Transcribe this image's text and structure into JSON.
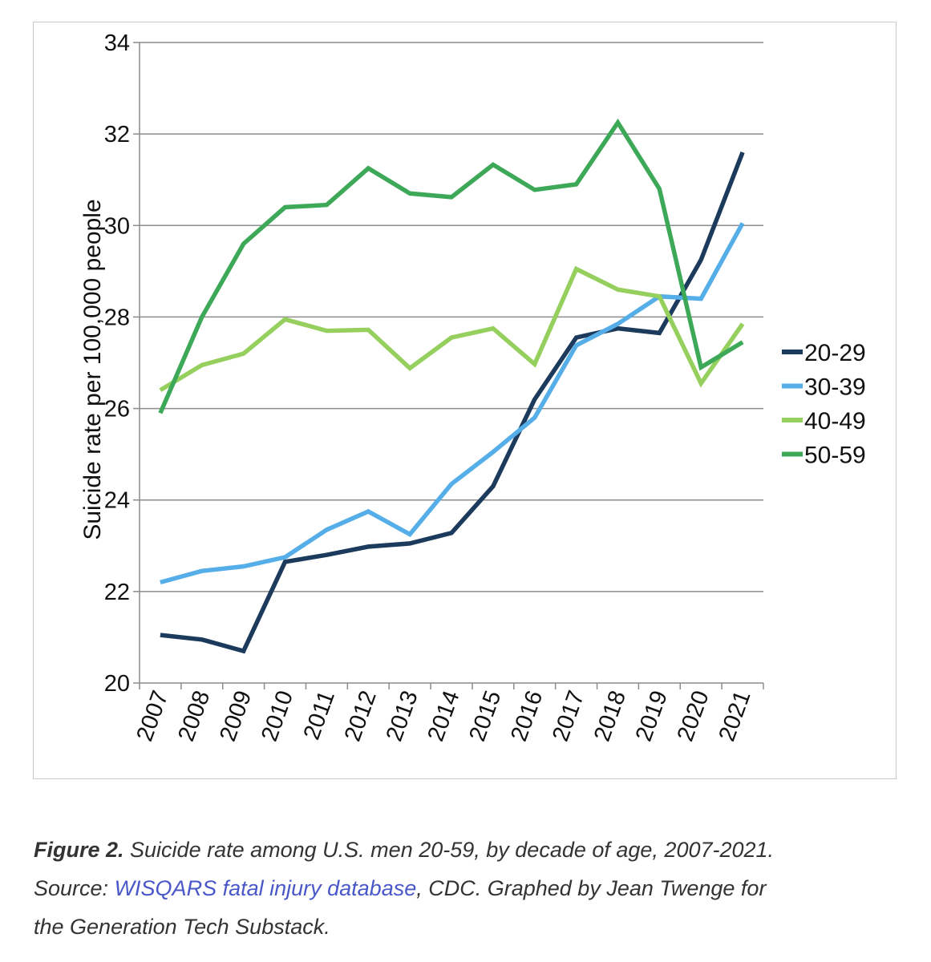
{
  "chart_data": {
    "type": "line",
    "title": "",
    "xlabel": "",
    "ylabel": "Suicide rate per 100,000 people",
    "ylim": [
      20,
      34
    ],
    "yticks": [
      "20",
      "22",
      "24",
      "26",
      "28",
      "30",
      "32",
      "34"
    ],
    "ytick_values": [
      20,
      22,
      24,
      26,
      28,
      30,
      32,
      34
    ],
    "categories": [
      "2007",
      "2008",
      "2009",
      "2010",
      "2011",
      "2012",
      "2013",
      "2014",
      "2015",
      "2016",
      "2017",
      "2018",
      "2019",
      "2020",
      "2021"
    ],
    "grid": true,
    "legend_position": "right",
    "series": [
      {
        "name": "20-29",
        "color": "#1c3a5c",
        "values": [
          21.05,
          20.95,
          20.7,
          22.65,
          22.8,
          22.98,
          23.05,
          23.28,
          24.3,
          26.2,
          27.55,
          27.75,
          27.65,
          29.25,
          31.6
        ]
      },
      {
        "name": "30-39",
        "color": "#55aee8",
        "values": [
          22.2,
          22.45,
          22.55,
          22.75,
          23.35,
          23.75,
          23.25,
          24.35,
          25.05,
          25.8,
          27.38,
          27.85,
          28.45,
          28.4,
          30.05
        ]
      },
      {
        "name": "40-49",
        "color": "#95cf5d",
        "values": [
          26.4,
          26.95,
          27.2,
          27.95,
          27.7,
          27.72,
          26.88,
          27.55,
          27.75,
          26.97,
          29.05,
          28.6,
          28.45,
          26.55,
          27.85
        ]
      },
      {
        "name": "50-59",
        "color": "#3da958",
        "values": [
          25.9,
          28.0,
          29.6,
          30.4,
          30.45,
          31.25,
          30.7,
          30.62,
          31.33,
          30.78,
          30.9,
          32.25,
          30.8,
          26.9,
          27.45
        ]
      }
    ]
  },
  "caption": {
    "figure_label": "Figure 2.",
    "line1_rest": " Suicide rate among U.S. men 20-59, by decade of age, 2007-2021.",
    "source_label": "Source: ",
    "source_link": "WISQARS fatal injury database",
    "source_rest": ", CDC. Graphed by Jean Twenge for",
    "line3": "the Generation Tech Substack."
  }
}
